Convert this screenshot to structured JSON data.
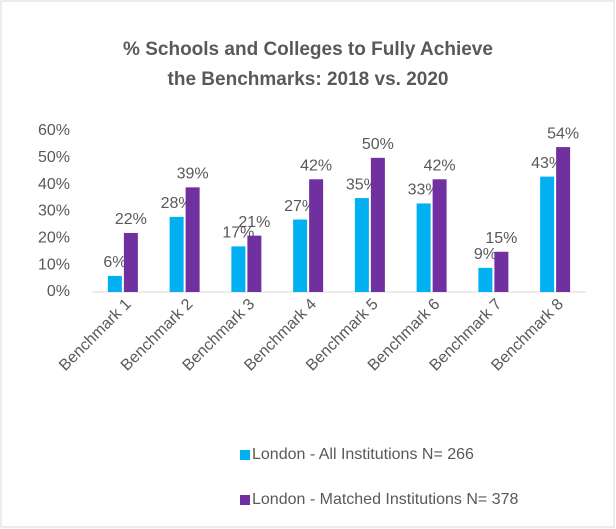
{
  "chart_data": {
    "type": "bar",
    "title": [
      "% Schools and Colleges to Fully Achieve",
      "the Benchmarks: 2018 vs. 2020"
    ],
    "categories": [
      "Benchmark 1",
      "Benchmark 2",
      "Benchmark 3",
      "Benchmark 4",
      "Benchmark 5",
      "Benchmark 6",
      "Benchmark 7",
      "Benchmark 8"
    ],
    "series": [
      {
        "name": "London - All Institutions N= 266",
        "color": "#00b0f0",
        "values": [
          6,
          28,
          17,
          27,
          35,
          33,
          9,
          43
        ],
        "value_labels": [
          "6%",
          "28%",
          "17%",
          "27%",
          "35%",
          "33%",
          "9%",
          "43%"
        ]
      },
      {
        "name": "London - Matched Institutions N= 378",
        "color": "#7030a0",
        "values": [
          22,
          39,
          21,
          42,
          50,
          42,
          15,
          54
        ],
        "value_labels": [
          "22%",
          "39%",
          "21%",
          "42%",
          "50%",
          "42%",
          "15%",
          "54%"
        ]
      }
    ],
    "ylim": [
      0,
      60
    ],
    "yticks": [
      {
        "value": 0,
        "label": "0%"
      },
      {
        "value": 10,
        "label": "10%"
      },
      {
        "value": 20,
        "label": "20%"
      },
      {
        "value": 30,
        "label": "30%"
      },
      {
        "value": 40,
        "label": "40%"
      },
      {
        "value": 50,
        "label": "50%"
      },
      {
        "value": 60,
        "label": "60%"
      }
    ],
    "grid": false,
    "legend": "bottom"
  }
}
